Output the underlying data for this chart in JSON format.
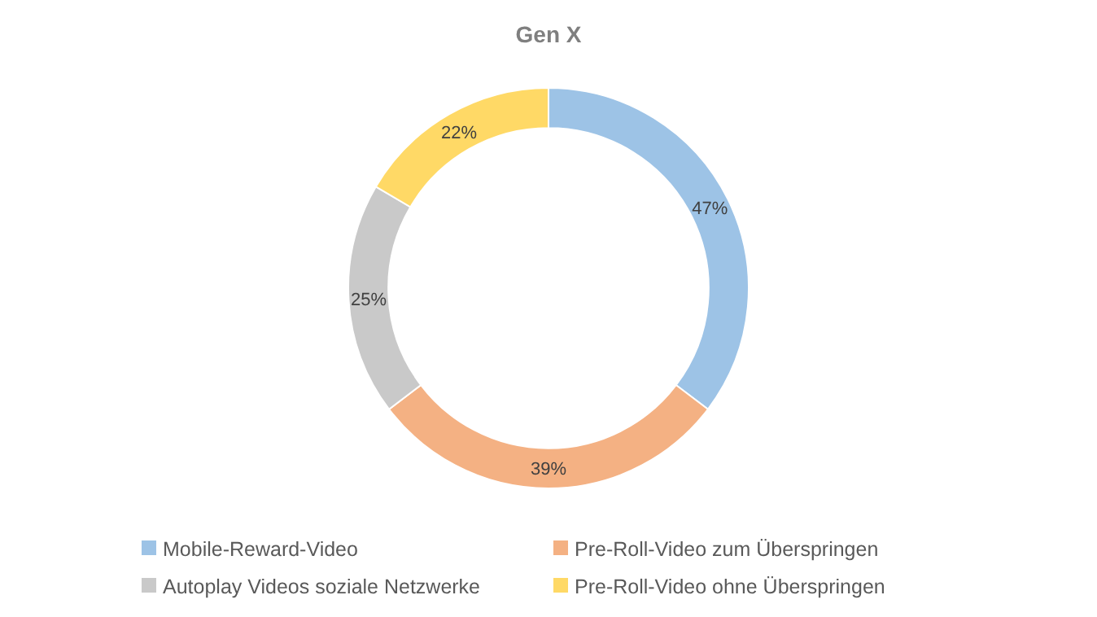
{
  "chart_data": {
    "type": "donut",
    "title": "Gen X",
    "categories": [
      "Mobile-Reward-Video",
      "Pre-Roll-Video zum Überspringen",
      "Autoplay Videos soziale Netzwerke",
      "Pre-Roll-Video ohne Überspringen"
    ],
    "values": [
      47,
      39,
      25,
      22
    ],
    "value_labels": [
      "47%",
      "39%",
      "25%",
      "22%"
    ],
    "colors": [
      "#9dc3e6",
      "#f4b183",
      "#c9c9c9",
      "#ffd966"
    ],
    "legend": "bottom"
  }
}
